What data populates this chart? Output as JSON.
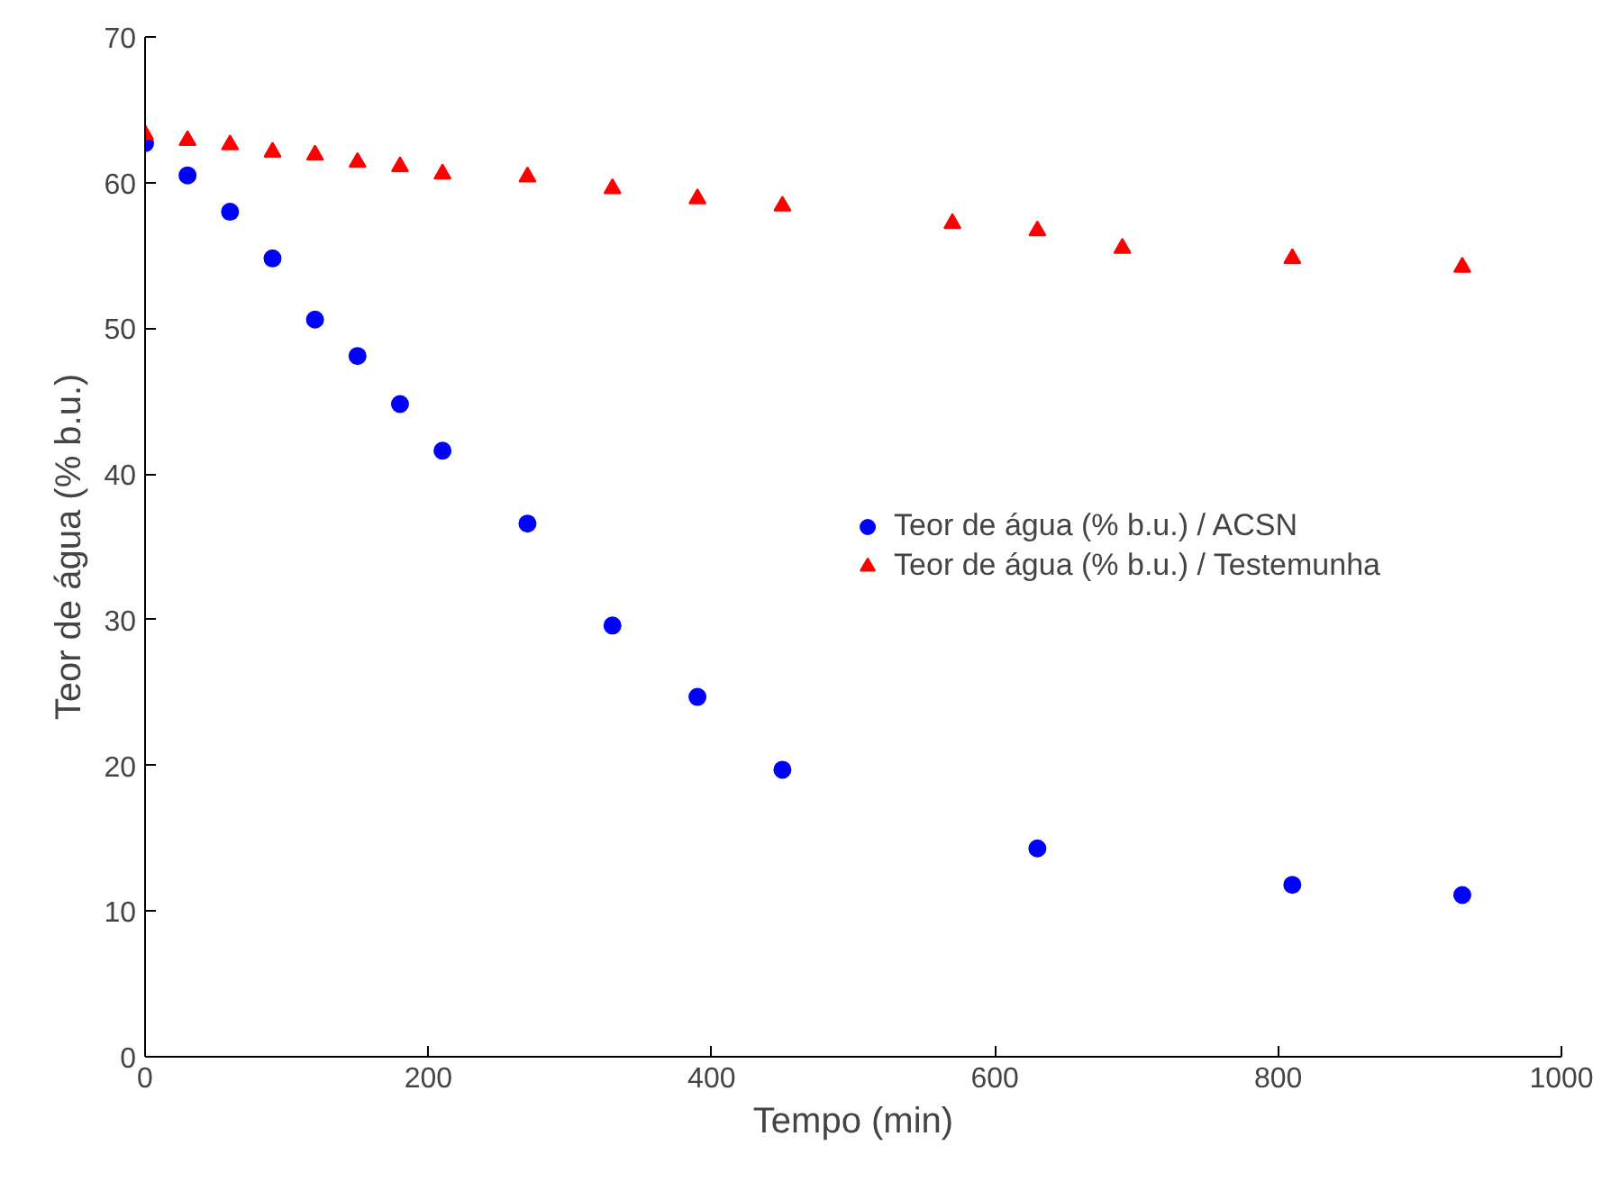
{
  "chart_data": {
    "type": "scatter",
    "xlabel": "Tempo (min)",
    "ylabel": "Teor de água (% b.u.)",
    "x": [
      0,
      30,
      60,
      90,
      120,
      150,
      180,
      210,
      270,
      330,
      390,
      450,
      630,
      810,
      930
    ],
    "series": [
      {
        "name": "Teor de água (% b.u.) / ACSN",
        "color": "#0000ff",
        "marker": "circle",
        "values": [
          62.7,
          60.5,
          58.0,
          54.8,
          50.6,
          48.1,
          44.8,
          41.6,
          36.6,
          29.6,
          24.7,
          19.7,
          14.3,
          11.8,
          11.1
        ]
      },
      {
        "name": "Teor de água (% b.u.) / Testemunha",
        "color": "#ff0000",
        "marker": "triangle",
        "x": [
          0,
          30,
          60,
          90,
          120,
          150,
          180,
          210,
          270,
          330,
          390,
          450,
          570,
          630,
          690,
          810,
          930
        ],
        "values": [
          63.3,
          62.9,
          62.6,
          62.1,
          61.9,
          61.4,
          61.1,
          60.6,
          60.4,
          59.6,
          58.9,
          58.4,
          57.2,
          56.7,
          55.5,
          54.8,
          54.2
        ]
      }
    ],
    "xlim": [
      0,
      1000
    ],
    "xticks": [
      0,
      200,
      400,
      600,
      800,
      1000
    ],
    "ylim": [
      0,
      70
    ],
    "yticks": [
      0,
      10,
      20,
      30,
      40,
      50,
      60,
      70
    ],
    "grid": false,
    "legend": "right"
  }
}
